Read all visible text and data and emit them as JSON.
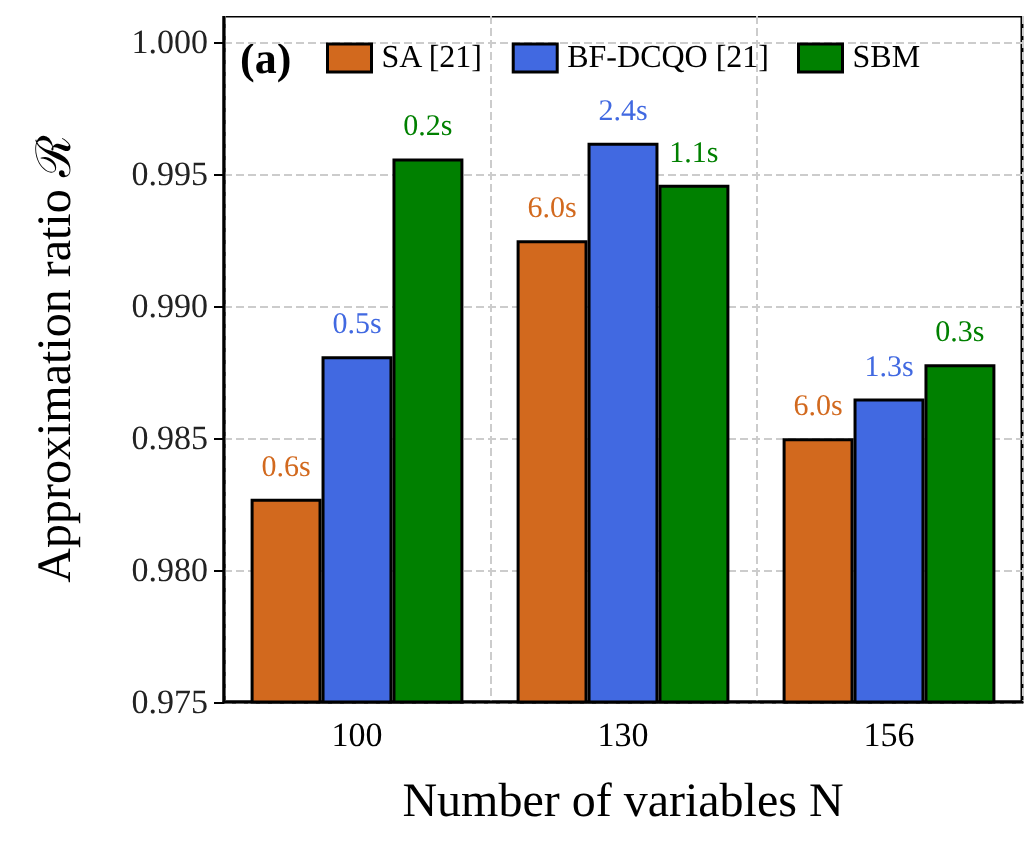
{
  "chart_data": {
    "type": "bar",
    "xlabel": "Number of variables N",
    "ylabel": "Approximation ratio ℛ",
    "categories": [
      "100",
      "130",
      "156"
    ],
    "series": [
      {
        "name": "SA [21]",
        "color": "#d2691e",
        "values": [
          0.9827,
          0.9925,
          0.985
        ]
      },
      {
        "name": "BF-DCQO [21]",
        "color": "#4169e1",
        "values": [
          0.9881,
          0.9962,
          0.9865
        ]
      },
      {
        "name": "SBM",
        "color": "#008000",
        "values": [
          0.9956,
          0.9946,
          0.9878
        ]
      }
    ],
    "ylim": [
      0.975,
      1.001
    ],
    "yticks": [
      0.975,
      {
        "value": 0.98,
        "label": "0.980"
      },
      0.985,
      {
        "value": 0.99,
        "label": "0.990"
      },
      0.995,
      {
        "value": 1,
        "label": "1.000"
      }
    ],
    "grid": true,
    "legend": "top",
    "annotations": [
      "(a)",
      "0.6s",
      "6.0s",
      "6.0s",
      "0.5s",
      "2.4s",
      "1.3s",
      "0.2s",
      "1.1s",
      "0.3s"
    ]
  }
}
